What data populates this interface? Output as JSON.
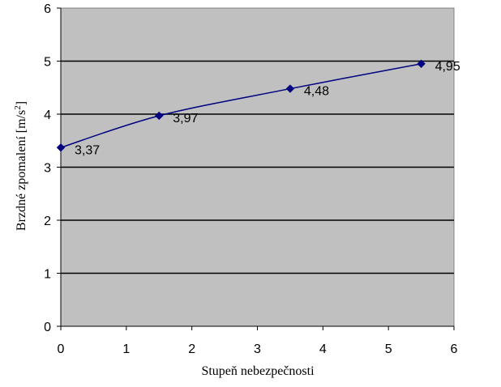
{
  "chart_data": {
    "type": "line",
    "xlabel": "Stupeň nebezpečnosti",
    "ylabel": "Brzdné zpomalení [m/s",
    "ylabel_sup": "2",
    "ylabel_end": "]",
    "xlim": [
      0,
      6
    ],
    "ylim": [
      0,
      6
    ],
    "xticks": [
      "0",
      "1",
      "2",
      "3",
      "4",
      "5",
      "6"
    ],
    "yticks": [
      "0",
      "1",
      "2",
      "3",
      "4",
      "5",
      "6"
    ],
    "grid": "horizontal",
    "legend": "none",
    "series": [
      {
        "x": [
          0,
          1.5,
          3.5,
          5.5
        ],
        "y": [
          3.37,
          3.97,
          4.48,
          4.95
        ],
        "labels": [
          "3,37",
          "3,97",
          "4,48",
          "4,95"
        ]
      }
    ]
  },
  "colors": {
    "plot_background": "#c0c0c0",
    "line": "#000080",
    "gridline": "#000000"
  }
}
